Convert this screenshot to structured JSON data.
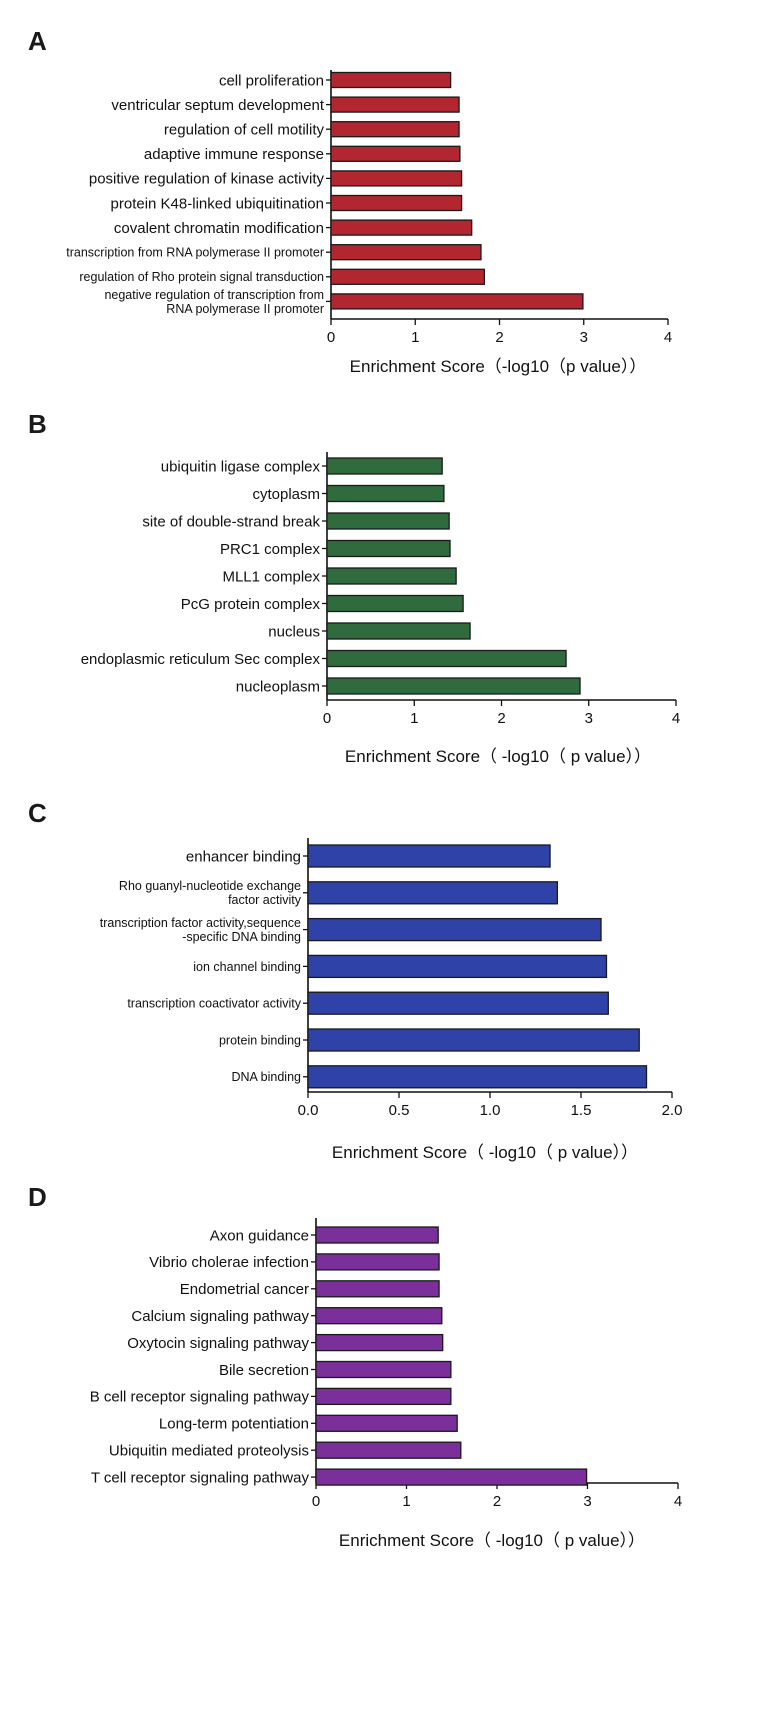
{
  "chart_data": [
    {
      "type": "bar",
      "orientation": "horizontal",
      "panel": "A",
      "color": "#b22630",
      "categories": [
        "cell proliferation",
        "ventricular septum development",
        "regulation of cell motility",
        "adaptive immune response",
        "positive regulation of kinase activity",
        "protein K48-linked ubiquitination",
        "covalent chromatin modification",
        "transcription from RNA polymerase II promoter",
        "regulation of Rho protein signal transduction",
        "negative regulation of transcription from\nRNA polymerase II promoter"
      ],
      "values": [
        1.42,
        1.52,
        1.52,
        1.53,
        1.55,
        1.55,
        1.67,
        1.78,
        1.82,
        2.99
      ],
      "xlim": [
        0,
        4
      ],
      "xticks": [
        "0",
        "1",
        "2",
        "3",
        "4"
      ],
      "xlabel": "Enrichment Score（-log10（p value））",
      "ylabel": "",
      "grid": false
    },
    {
      "type": "bar",
      "orientation": "horizontal",
      "panel": "B",
      "color": "#2f6b3d",
      "categories": [
        "ubiquitin ligase complex",
        "cytoplasm",
        "site of double-strand break",
        "PRC1 complex",
        "MLL1 complex",
        "PcG protein complex",
        "nucleus",
        "endoplasmic reticulum Sec complex",
        "nucleoplasm"
      ],
      "values": [
        1.32,
        1.34,
        1.4,
        1.41,
        1.48,
        1.56,
        1.64,
        2.74,
        2.9
      ],
      "xlim": [
        0,
        4
      ],
      "xticks": [
        "0",
        "1",
        "2",
        "3",
        "4"
      ],
      "xlabel": "Enrichment Score（ -log10（ p value））",
      "ylabel": "",
      "grid": false
    },
    {
      "type": "bar",
      "orientation": "horizontal",
      "panel": "C",
      "color": "#2e42a8",
      "categories": [
        "enhancer binding",
        "Rho guanyl-nucleotide exchange\nfactor activity",
        "transcription factor activity,sequence\n-specific DNA binding",
        "ion channel binding",
        "transcription coactivator activity",
        "protein binding",
        "DNA binding"
      ],
      "values": [
        1.33,
        1.37,
        1.61,
        1.64,
        1.65,
        1.82,
        1.86
      ],
      "xlim": [
        0,
        2
      ],
      "xticks": [
        "0.0",
        "0.5",
        "1.0",
        "1.5",
        "2.0"
      ],
      "xlabel": "Enrichment Score（ -log10（ p value））",
      "ylabel": "",
      "grid": false
    },
    {
      "type": "bar",
      "orientation": "horizontal",
      "panel": "D",
      "color": "#7a2f9a",
      "categories": [
        "Axon guidance",
        "Vibrio cholerae infection",
        "Endometrial cancer",
        "Calcium signaling pathway",
        "Oxytocin signaling pathway",
        "Bile secretion",
        "B cell receptor signaling pathway",
        "Long-term potentiation",
        "Ubiquitin mediated proteolysis",
        "T cell receptor signaling pathway"
      ],
      "values": [
        1.35,
        1.36,
        1.36,
        1.39,
        1.4,
        1.49,
        1.49,
        1.56,
        1.6,
        2.99
      ],
      "xlim": [
        0,
        4
      ],
      "xticks": [
        "0",
        "1",
        "2",
        "3",
        "4"
      ],
      "xlabel": "Enrichment Score（ -log10（ p value））",
      "ylabel": "",
      "grid": false
    }
  ]
}
